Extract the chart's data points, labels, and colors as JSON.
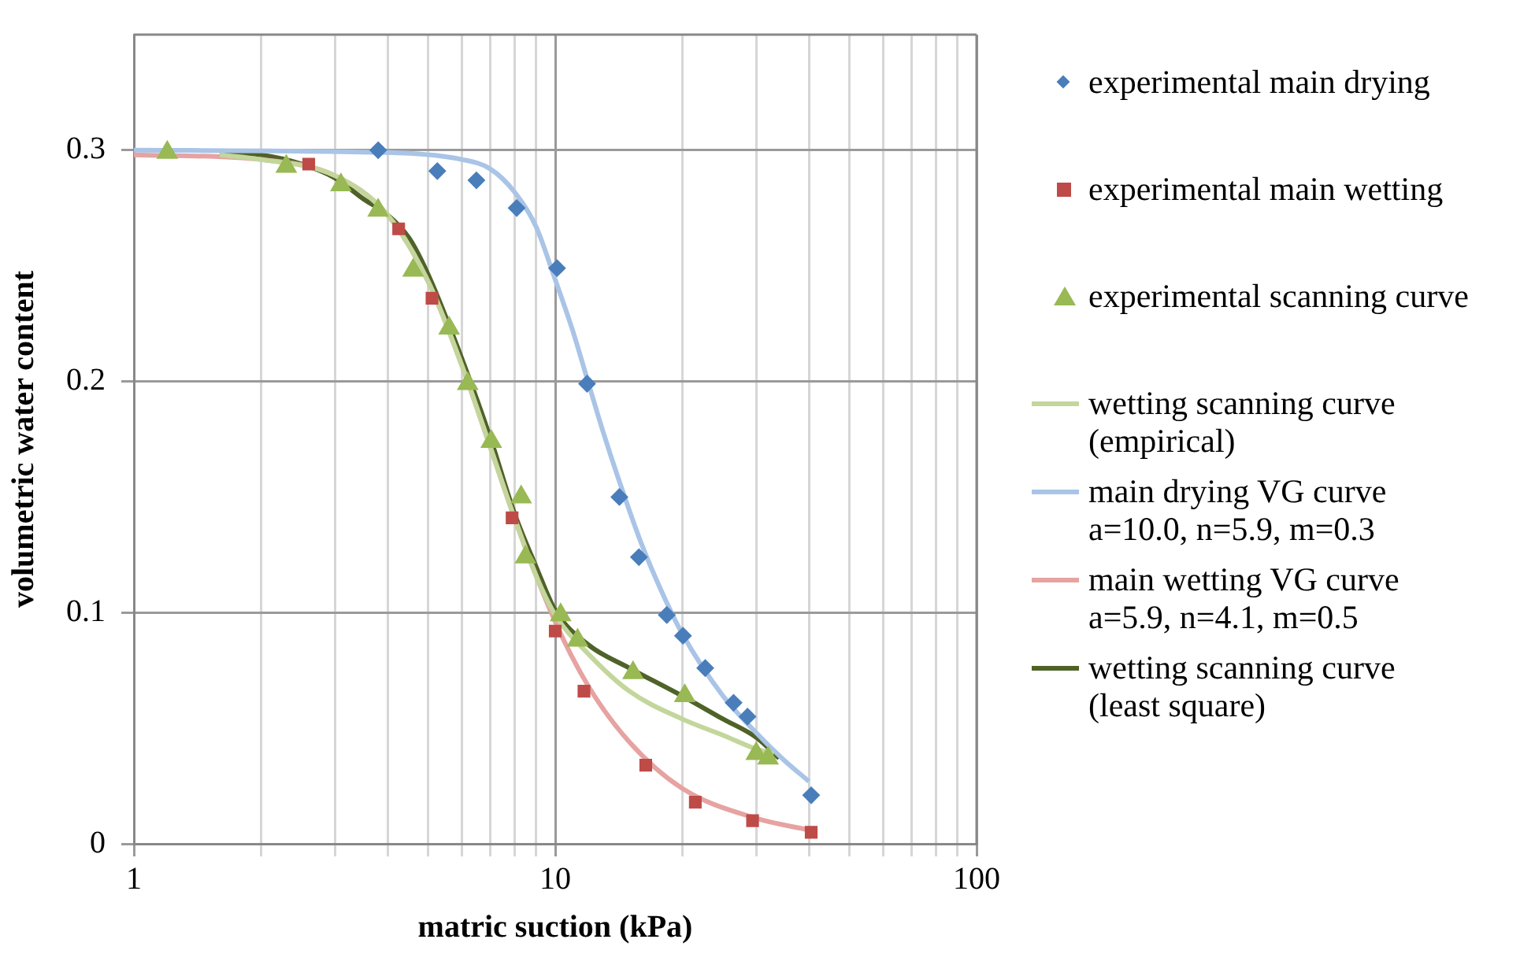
{
  "chart_data": {
    "type": "scatter",
    "xlabel": "matric suction (kPa)",
    "ylabel": "volumetric water content",
    "log": "x",
    "grid": true,
    "legend": "right",
    "xlim": [
      1,
      100
    ],
    "xticks": [
      1,
      {
        "value": 2,
        "label": null
      },
      {
        "value": 3,
        "label": null
      },
      {
        "value": 4,
        "label": null
      },
      {
        "value": 5,
        "label": null
      },
      {
        "value": 6,
        "label": null
      },
      {
        "value": 7,
        "label": null
      },
      {
        "value": 8,
        "label": null
      },
      {
        "value": 9,
        "label": null
      },
      10,
      {
        "value": 20,
        "label": null
      },
      {
        "value": 30,
        "label": null
      },
      {
        "value": 40,
        "label": null
      },
      {
        "value": 50,
        "label": null
      },
      {
        "value": 60,
        "label": null
      },
      {
        "value": 70,
        "label": null
      },
      {
        "value": 80,
        "label": null
      },
      {
        "value": 90,
        "label": null
      },
      100
    ],
    "ylim": [
      0,
      0.35
    ],
    "yticks": [
      0,
      0.1,
      0.2,
      0.3
    ],
    "series": [
      {
        "name": "experimental main drying",
        "type": "scatter",
        "marker": "diamond",
        "color": "#4a7ebb",
        "x": [
          3.8,
          5.25,
          6.5,
          8.1,
          10.1,
          11.9,
          14.2,
          15.8,
          18.4,
          20.1,
          22.7,
          26.5,
          28.6,
          40.5
        ],
        "values": [
          0.3,
          0.291,
          0.287,
          0.275,
          0.249,
          0.199,
          0.15,
          0.124,
          0.099,
          0.09,
          0.076,
          0.061,
          0.055,
          0.021
        ]
      },
      {
        "name": "experimental main wetting",
        "type": "scatter",
        "marker": "square",
        "color": "#be4b48",
        "x": [
          2.6,
          4.25,
          5.1,
          7.9,
          10.0,
          11.7,
          16.4,
          21.5,
          29.4,
          40.5
        ],
        "values": [
          0.294,
          0.266,
          0.236,
          0.141,
          0.092,
          0.066,
          0.034,
          0.018,
          0.01,
          0.005
        ]
      },
      {
        "name": "experimental scanning curve",
        "type": "scatter",
        "marker": "triangle",
        "color": "#98b954",
        "x": [
          1.2,
          2.3,
          3.1,
          3.8,
          4.6,
          5.6,
          6.2,
          7.05,
          8.3,
          8.5,
          10.3,
          11.3,
          15.3,
          20.3,
          30.0,
          32.0
        ],
        "values": [
          0.299,
          0.293,
          0.285,
          0.274,
          0.248,
          0.223,
          0.199,
          0.174,
          0.15,
          0.124,
          0.099,
          0.088,
          0.074,
          0.064,
          0.039,
          0.037
        ]
      },
      {
        "name": "wetting scanning curve\n(empirical)",
        "type": "line",
        "marker": "none",
        "color": "#c3d69b",
        "x": [
          1.6,
          2,
          3,
          4,
          5,
          6,
          7,
          8,
          9,
          10,
          12,
          15,
          20,
          25,
          30,
          33
        ],
        "values": [
          0.298,
          0.296,
          0.289,
          0.272,
          0.243,
          0.207,
          0.172,
          0.141,
          0.116,
          0.099,
          0.082,
          0.066,
          0.054,
          0.047,
          0.041,
          0.039
        ]
      },
      {
        "name": "main drying VG curve\na=10.0, n=5.9, m=0.3",
        "type": "line",
        "marker": "none",
        "color": "#a9c4e6",
        "x": [
          1,
          4,
          6,
          7,
          8,
          9,
          10,
          11,
          12,
          13,
          14,
          16,
          18,
          20,
          25,
          30,
          35,
          40
        ],
        "values": [
          0.3,
          0.299,
          0.296,
          0.292,
          0.282,
          0.267,
          0.244,
          0.222,
          0.199,
          0.178,
          0.16,
          0.13,
          0.108,
          0.091,
          0.064,
          0.048,
          0.036,
          0.027
        ]
      },
      {
        "name": "main wetting VG curve\na=5.9, n=4.1, m=0.5",
        "type": "line",
        "marker": "none",
        "color": "#e6a3a1",
        "x": [
          1,
          2,
          3,
          4,
          5,
          6,
          7,
          8,
          10,
          12,
          15,
          20,
          30,
          40
        ],
        "values": [
          0.298,
          0.296,
          0.289,
          0.272,
          0.243,
          0.207,
          0.172,
          0.141,
          0.096,
          0.068,
          0.044,
          0.024,
          0.011,
          0.006
        ]
      },
      {
        "name": "wetting scanning curve\n(least square)",
        "type": "line",
        "marker": "none",
        "color": "#4f6228",
        "x": [
          1.6,
          2,
          2.5,
          3,
          3.5,
          4,
          4.5,
          5,
          6,
          7,
          8,
          9,
          10,
          12,
          15,
          20,
          25,
          30,
          34
        ],
        "values": [
          0.299,
          0.298,
          0.294,
          0.288,
          0.279,
          0.272,
          0.262,
          0.246,
          0.21,
          0.176,
          0.143,
          0.12,
          0.101,
          0.086,
          0.076,
          0.064,
          0.054,
          0.046,
          0.037
        ]
      }
    ]
  }
}
